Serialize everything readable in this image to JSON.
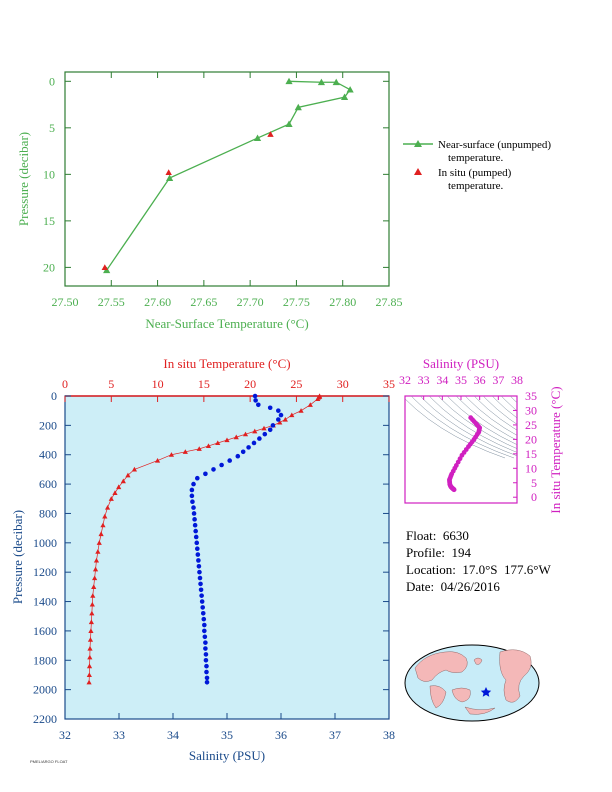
{
  "credit": "PMEL/ARGO FLOAT",
  "info": {
    "float_label": "Float:",
    "float": "6630",
    "profile_label": "Profile:",
    "profile": "194",
    "location_label": "Location:",
    "location": "17.0°S  177.6°W",
    "date_label": "Date:",
    "date": "04/26/2016"
  },
  "colors": {
    "green": "#4caf50",
    "red": "#e02020",
    "blue": "#0018d8",
    "magenta": "#d020c0",
    "panel": "#cdeef7",
    "land": "#f4b8b8",
    "ocean": "#c8ecf8"
  },
  "chart_data": [
    {
      "type": "line",
      "xlabel": "Near-Surface Temperature (°C)",
      "ylabel": "Pressure (decibar)",
      "xlim": [
        27.5,
        27.85
      ],
      "ylim": [
        22,
        -1
      ],
      "x_ticks": [
        "27.50",
        "27.55",
        "27.60",
        "27.65",
        "27.70",
        "27.75",
        "27.80",
        "27.85"
      ],
      "y_ticks": [
        "0",
        "5",
        "10",
        "15",
        "20"
      ],
      "legend_position": "right",
      "series": [
        {
          "name": "Near-surface (unpumped) temperature.",
          "marker": "triangle",
          "points": [
            [
              27.742,
              0.0
            ],
            [
              27.777,
              0.1
            ],
            [
              27.793,
              0.1
            ],
            [
              27.808,
              0.9
            ],
            [
              27.802,
              1.7
            ],
            [
              27.752,
              2.8
            ],
            [
              27.742,
              4.6
            ],
            [
              27.708,
              6.1
            ],
            [
              27.613,
              10.4
            ],
            [
              27.545,
              20.3
            ]
          ]
        },
        {
          "name": "In situ (pumped) temperature.",
          "marker": "triangle",
          "points": [
            [
              27.722,
              5.7
            ],
            [
              27.612,
              9.8
            ],
            [
              27.543,
              20.0
            ]
          ]
        }
      ]
    },
    {
      "type": "scatter",
      "ylabel": "Pressure (decibar)",
      "ylim": [
        2200,
        0
      ],
      "y_ticks": [
        "0",
        "200",
        "400",
        "600",
        "800",
        "1000",
        "1200",
        "1400",
        "1600",
        "1800",
        "2000",
        "2200"
      ],
      "x_bottom_label": "Salinity (PSU)",
      "x_bottom_lim": [
        32,
        38
      ],
      "x_bottom_ticks": [
        "32",
        "33",
        "34",
        "35",
        "36",
        "37",
        "38"
      ],
      "x_top_label": "In situ Temperature (°C)",
      "x_top_lim": [
        0,
        35
      ],
      "x_top_ticks": [
        "0",
        "5",
        "10",
        "15",
        "20",
        "25",
        "30",
        "35"
      ],
      "series": [
        {
          "name": "In situ Temperature",
          "axis": "top",
          "marker": "triangle",
          "points": [
            [
              27.5,
              0
            ],
            [
              27.5,
              5
            ],
            [
              27.4,
              10
            ],
            [
              27.3,
              20
            ],
            [
              26.5,
              60
            ],
            [
              25.5,
              100
            ],
            [
              24.5,
              130
            ],
            [
              23.8,
              160
            ],
            [
              23.2,
              180
            ],
            [
              22.5,
              200
            ],
            [
              21.5,
              220
            ],
            [
              20.5,
              240
            ],
            [
              19.5,
              260
            ],
            [
              18.5,
              280
            ],
            [
              17.5,
              300
            ],
            [
              16.5,
              320
            ],
            [
              15.5,
              340
            ],
            [
              14.5,
              360
            ],
            [
              13.0,
              380
            ],
            [
              11.5,
              400
            ],
            [
              10.0,
              440
            ],
            [
              7.5,
              500
            ],
            [
              6.8,
              540
            ],
            [
              6.3,
              580
            ],
            [
              5.8,
              620
            ],
            [
              5.4,
              660
            ],
            [
              5.0,
              700
            ],
            [
              4.6,
              760
            ],
            [
              4.3,
              820
            ],
            [
              4.1,
              880
            ],
            [
              3.9,
              940
            ],
            [
              3.7,
              1000
            ],
            [
              3.55,
              1060
            ],
            [
              3.4,
              1120
            ],
            [
              3.3,
              1180
            ],
            [
              3.2,
              1240
            ],
            [
              3.1,
              1300
            ],
            [
              3.0,
              1360
            ],
            [
              2.95,
              1420
            ],
            [
              2.9,
              1480
            ],
            [
              2.85,
              1540
            ],
            [
              2.8,
              1600
            ],
            [
              2.75,
              1660
            ],
            [
              2.7,
              1720
            ],
            [
              2.68,
              1780
            ],
            [
              2.65,
              1840
            ],
            [
              2.63,
              1900
            ],
            [
              2.6,
              1950
            ]
          ]
        },
        {
          "name": "Salinity",
          "axis": "bottom",
          "marker": "circle",
          "points": [
            [
              35.52,
              0
            ],
            [
              35.53,
              30
            ],
            [
              35.58,
              60
            ],
            [
              35.8,
              80
            ],
            [
              35.95,
              100
            ],
            [
              36.0,
              130
            ],
            [
              35.95,
              160
            ],
            [
              35.85,
              200
            ],
            [
              35.8,
              230
            ],
            [
              35.7,
              260
            ],
            [
              35.6,
              290
            ],
            [
              35.5,
              320
            ],
            [
              35.4,
              350
            ],
            [
              35.3,
              380
            ],
            [
              35.2,
              410
            ],
            [
              35.05,
              440
            ],
            [
              34.9,
              470
            ],
            [
              34.75,
              500
            ],
            [
              34.6,
              530
            ],
            [
              34.45,
              560
            ],
            [
              34.38,
              600
            ],
            [
              34.35,
              640
            ],
            [
              34.35,
              680
            ],
            [
              34.36,
              720
            ],
            [
              34.38,
              760
            ],
            [
              34.39,
              800
            ],
            [
              34.4,
              840
            ],
            [
              34.41,
              880
            ],
            [
              34.42,
              920
            ],
            [
              34.43,
              960
            ],
            [
              34.44,
              1000
            ],
            [
              34.45,
              1040
            ],
            [
              34.46,
              1080
            ],
            [
              34.47,
              1120
            ],
            [
              34.48,
              1160
            ],
            [
              34.49,
              1200
            ],
            [
              34.5,
              1240
            ],
            [
              34.51,
              1280
            ],
            [
              34.52,
              1320
            ],
            [
              34.53,
              1360
            ],
            [
              34.54,
              1400
            ],
            [
              34.55,
              1440
            ],
            [
              34.56,
              1480
            ],
            [
              34.57,
              1520
            ],
            [
              34.58,
              1560
            ],
            [
              34.58,
              1600
            ],
            [
              34.59,
              1640
            ],
            [
              34.6,
              1680
            ],
            [
              34.6,
              1720
            ],
            [
              34.61,
              1760
            ],
            [
              34.61,
              1800
            ],
            [
              34.62,
              1840
            ],
            [
              34.62,
              1880
            ],
            [
              34.63,
              1920
            ],
            [
              34.63,
              1950
            ]
          ]
        }
      ]
    },
    {
      "type": "scatter",
      "x_top_label": "Salinity (PSU)",
      "xlim": [
        32,
        38
      ],
      "x_ticks": [
        "32",
        "33",
        "34",
        "35",
        "36",
        "37",
        "38"
      ],
      "ylabel": "In situ Temperature (°C)",
      "ylim": [
        -2,
        35
      ],
      "y_ticks": [
        "0",
        "5",
        "10",
        "15",
        "20",
        "25",
        "30",
        "35"
      ],
      "points": [
        [
          35.52,
          27.5
        ],
        [
          35.8,
          25.5
        ],
        [
          36.0,
          24
        ],
        [
          35.95,
          22.5
        ],
        [
          35.7,
          20
        ],
        [
          35.4,
          17.5
        ],
        [
          35.05,
          14.5
        ],
        [
          34.75,
          11
        ],
        [
          34.5,
          8
        ],
        [
          34.38,
          6
        ],
        [
          34.4,
          4.5
        ],
        [
          34.45,
          3.7
        ],
        [
          34.52,
          3.2
        ],
        [
          34.58,
          2.9
        ],
        [
          34.63,
          2.6
        ]
      ]
    }
  ],
  "labels": {
    "legend_nsurf_1": "Near-surface (unpumped)",
    "legend_nsurf_2": "temperature.",
    "legend_insitu_1": "In situ (pumped)",
    "legend_insitu_2": "temperature."
  }
}
